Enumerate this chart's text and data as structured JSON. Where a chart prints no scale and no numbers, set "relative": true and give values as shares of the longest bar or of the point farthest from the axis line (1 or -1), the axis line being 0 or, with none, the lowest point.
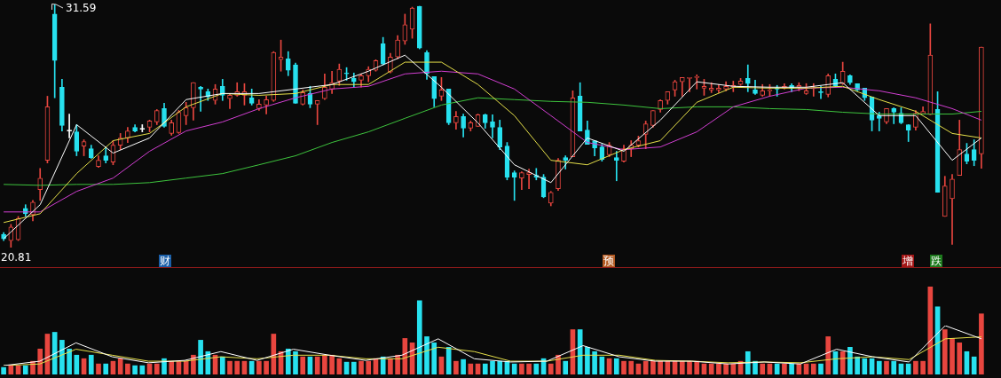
{
  "chart_data": [
    {
      "type": "candlestick",
      "categories": [
        null,
        null,
        null,
        null,
        null,
        null,
        null,
        null,
        null,
        null,
        null,
        null,
        null,
        null,
        null,
        null,
        null,
        null,
        null,
        null,
        null,
        null,
        null,
        null,
        null,
        null,
        null,
        null,
        null,
        null,
        null,
        null,
        null,
        null,
        null,
        null,
        null,
        null,
        null,
        null,
        null,
        null,
        null,
        null,
        null,
        null,
        null,
        null,
        null,
        null,
        null,
        null,
        null,
        null,
        null,
        null,
        null,
        null,
        null,
        null,
        null,
        null,
        null,
        null,
        null,
        null,
        null,
        null,
        null,
        null,
        null,
        null,
        null,
        null,
        null,
        null,
        null,
        null,
        null,
        null,
        null,
        null,
        null,
        null,
        null,
        null,
        null,
        null,
        null,
        null,
        null,
        null,
        null,
        null,
        null,
        null,
        null,
        null,
        null,
        null,
        null,
        null,
        null,
        null,
        null,
        null,
        null,
        null,
        null,
        null,
        null,
        null,
        null,
        null,
        null,
        null,
        null,
        null,
        null,
        null,
        null,
        null,
        null,
        null,
        null,
        null,
        null,
        null,
        null,
        null,
        null,
        null,
        null,
        null,
        null
      ],
      "ohlc": [
        [
          21.4,
          21.48,
          21.12,
          21.2
        ],
        [
          21.12,
          21.84,
          20.81,
          21.72
        ],
        [
          21.16,
          22.19,
          21.12,
          22.11
        ],
        [
          22.55,
          22.71,
          22.19,
          22.31
        ],
        [
          22.27,
          22.9,
          21.99,
          22.82
        ],
        [
          23.38,
          24.32,
          22.9,
          23.89
        ],
        [
          24.68,
          27.52,
          24.56,
          27.05
        ],
        [
          31.16,
          31.59,
          27.45,
          29.1
        ],
        [
          27.92,
          28.27,
          25.98,
          26.22
        ],
        [
          25.98,
          26.73,
          25.67,
          25.98
        ],
        [
          25.94,
          26.26,
          24.88,
          25.08
        ],
        [
          25.31,
          25.59,
          24.88,
          25.51
        ],
        [
          25.19,
          25.35,
          24.76,
          24.8
        ],
        [
          24.4,
          24.88,
          24.36,
          24.68
        ],
        [
          24.88,
          25.27,
          24.56,
          24.68
        ],
        [
          24.6,
          25.55,
          24.48,
          25.35
        ],
        [
          25.35,
          25.87,
          25.15,
          25.67
        ],
        [
          25.67,
          26.14,
          25.47,
          25.98
        ],
        [
          26.14,
          26.26,
          25.94,
          25.98
        ],
        [
          26.06,
          26.26,
          25.94,
          26.06
        ],
        [
          26.14,
          26.46,
          25.94,
          26.42
        ],
        [
          26.38,
          26.93,
          26.26,
          26.89
        ],
        [
          26.97,
          27.21,
          26.14,
          26.18
        ],
        [
          25.87,
          26.46,
          25.79,
          26.34
        ],
        [
          25.91,
          26.89,
          25.87,
          26.81
        ],
        [
          26.66,
          27.25,
          26.26,
          27.01
        ],
        [
          27.01,
          28.12,
          26.46,
          28.12
        ],
        [
          27.92,
          27.96,
          26.85,
          27.84
        ],
        [
          27.72,
          27.84,
          27.33,
          27.49
        ],
        [
          27.33,
          28.04,
          27.17,
          27.84
        ],
        [
          27.96,
          28.27,
          27.33,
          27.56
        ],
        [
          27.41,
          27.64,
          26.97,
          27.56
        ],
        [
          27.56,
          28.12,
          27.52,
          27.72
        ],
        [
          27.56,
          28.08,
          27.13,
          27.72
        ],
        [
          27.45,
          27.84,
          27.13,
          27.21
        ],
        [
          26.97,
          27.37,
          26.89,
          27.17
        ],
        [
          27.13,
          27.52,
          26.73,
          27.37
        ],
        [
          27.33,
          29.5,
          27.29,
          29.46
        ],
        [
          29.14,
          30.01,
          28.63,
          29.26
        ],
        [
          29.18,
          29.5,
          28.43,
          28.67
        ],
        [
          28.91,
          28.99,
          27.21,
          27.21
        ],
        [
          27.17,
          27.8,
          27.13,
          27.68
        ],
        [
          27.64,
          27.96,
          27.01,
          27.17
        ],
        [
          27.17,
          27.33,
          26.26,
          27.33
        ],
        [
          27.41,
          28.51,
          27.37,
          27.92
        ],
        [
          27.84,
          28.63,
          27.64,
          28.12
        ],
        [
          28.19,
          28.95,
          28.0,
          28.71
        ],
        [
          28.55,
          28.79,
          28.23,
          28.51
        ],
        [
          28.31,
          28.55,
          27.92,
          28.16
        ],
        [
          28.23,
          28.51,
          27.92,
          28.43
        ],
        [
          28.43,
          28.83,
          28.16,
          28.71
        ],
        [
          28.67,
          29.14,
          28.63,
          29.1
        ],
        [
          29.85,
          30.13,
          28.91,
          28.95
        ],
        [
          28.59,
          29.42,
          28.55,
          29.26
        ],
        [
          29.26,
          30.21,
          29.18,
          30.01
        ],
        [
          29.97,
          31.16,
          29.82,
          30.69
        ],
        [
          30.49,
          31.47,
          30.09,
          31.43
        ],
        [
          31.51,
          31.51,
          29.62,
          29.66
        ],
        [
          29.46,
          29.54,
          28.27,
          28.51
        ],
        [
          28.39,
          28.39,
          27.05,
          27.41
        ],
        [
          27.52,
          28.35,
          27.33,
          27.8
        ],
        [
          27.84,
          27.84,
          26.26,
          26.34
        ],
        [
          26.34,
          26.85,
          26.06,
          26.62
        ],
        [
          26.62,
          26.73,
          25.71,
          26.1
        ],
        [
          26.1,
          26.42,
          25.98,
          26.34
        ],
        [
          26.18,
          26.73,
          26.18,
          26.7
        ],
        [
          26.7,
          26.73,
          26.1,
          26.34
        ],
        [
          26.38,
          26.7,
          25.67,
          26.14
        ],
        [
          26.14,
          26.46,
          25.15,
          25.27
        ],
        [
          25.31,
          25.47,
          23.81,
          23.93
        ],
        [
          24.13,
          24.21,
          22.9,
          23.93
        ],
        [
          23.89,
          24.17,
          23.38,
          24.13
        ],
        [
          24.05,
          24.29,
          23.42,
          24.13
        ],
        [
          24.01,
          24.32,
          23.81,
          23.93
        ],
        [
          23.93,
          24.05,
          23.02,
          23.06
        ],
        [
          22.78,
          23.3,
          22.66,
          23.26
        ],
        [
          23.42,
          24.76,
          23.34,
          24.68
        ],
        [
          24.8,
          24.88,
          24.29,
          24.68
        ],
        [
          24.84,
          27.76,
          24.84,
          27.45
        ],
        [
          27.52,
          28.12,
          25.98,
          25.98
        ],
        [
          26.02,
          26.42,
          25.39,
          25.39
        ],
        [
          25.55,
          25.55,
          24.88,
          25.23
        ],
        [
          25.27,
          25.39,
          24.64,
          24.72
        ],
        [
          24.92,
          25.47,
          24.84,
          25.35
        ],
        [
          24.8,
          25.08,
          23.77,
          24.68
        ],
        [
          24.64,
          25.35,
          24.6,
          25.19
        ],
        [
          25.19,
          25.55,
          24.84,
          25.35
        ],
        [
          25.35,
          25.75,
          25.27,
          25.55
        ],
        [
          25.83,
          26.42,
          25.19,
          26.3
        ],
        [
          26.22,
          26.89,
          26.14,
          26.89
        ],
        [
          26.93,
          27.37,
          26.81,
          27.33
        ],
        [
          27.33,
          27.72,
          27.17,
          27.72
        ],
        [
          27.8,
          28.23,
          27.52,
          28.16
        ],
        [
          28.16,
          28.35,
          27.52,
          28.35
        ],
        [
          28.31,
          28.35,
          27.72,
          28.35
        ],
        [
          28.35,
          28.47,
          27.84,
          28.37
        ],
        [
          27.88,
          28.27,
          27.56,
          27.96
        ],
        [
          27.8,
          28.12,
          27.68,
          27.88
        ],
        [
          27.8,
          28.04,
          27.68,
          27.88
        ],
        [
          27.84,
          28.16,
          27.76,
          27.96
        ],
        [
          27.92,
          28.19,
          27.72,
          28.0
        ],
        [
          28.04,
          28.31,
          28.0,
          28.19
        ],
        [
          28.31,
          28.91,
          27.72,
          28.08
        ],
        [
          27.8,
          28.23,
          27.6,
          27.64
        ],
        [
          27.56,
          28.04,
          27.52,
          27.76
        ],
        [
          27.76,
          28.04,
          27.52,
          27.8
        ],
        [
          27.84,
          28.0,
          27.52,
          27.84
        ],
        [
          27.88,
          28.08,
          27.84,
          27.96
        ],
        [
          28.0,
          28.08,
          27.72,
          27.88
        ],
        [
          27.92,
          28.12,
          27.76,
          28.0
        ],
        [
          27.64,
          28.08,
          27.6,
          27.76
        ],
        [
          27.86,
          28.08,
          27.52,
          27.88
        ],
        [
          27.7,
          27.96,
          27.41,
          27.68
        ],
        [
          27.6,
          28.51,
          27.49,
          28.43
        ],
        [
          28.27,
          28.51,
          27.92,
          27.96
        ],
        [
          28.08,
          29.03,
          28.04,
          28.63
        ],
        [
          28.43,
          28.47,
          28.04,
          28.12
        ],
        [
          28.08,
          28.08,
          27.76,
          27.8
        ],
        [
          27.88,
          27.88,
          27.33,
          27.45
        ],
        [
          27.49,
          27.49,
          25.98,
          26.46
        ],
        [
          26.66,
          26.81,
          25.98,
          26.54
        ],
        [
          26.38,
          26.97,
          26.3,
          26.97
        ],
        [
          26.97,
          27.01,
          26.3,
          26.81
        ],
        [
          26.77,
          27.01,
          26.3,
          26.34
        ],
        [
          26.26,
          26.26,
          25.51,
          26.02
        ],
        [
          26.14,
          26.89,
          26.02,
          26.77
        ],
        [
          26.73,
          27.05,
          26.73,
          26.85
        ],
        [
          26.7,
          30.73,
          26.7,
          29.34
        ],
        [
          26.93,
          27.72,
          23.26,
          23.26
        ],
        [
          22.19,
          23.97,
          22.19,
          23.54
        ],
        [
          22.98,
          24.05,
          20.95,
          23.85
        ],
        [
          24.01,
          26.46,
          24.01,
          25.15
        ],
        [
          24.96,
          25.43,
          24.52,
          24.64
        ],
        [
          25.15,
          25.59,
          24.44,
          24.68
        ],
        [
          24.96,
          29.7,
          24.32,
          29.7
        ]
      ],
      "colors": [
        "#27e1ef",
        "#e8463f",
        "#e8463f",
        "#27e1ef",
        "#e8463f",
        "#e8463f",
        "#e8463f",
        "#27e1ef",
        "#27e1ef",
        "#ffffff",
        "#27e1ef",
        "#e8463f",
        "#27e1ef",
        "#e8463f",
        "#27e1ef",
        "#e8463f",
        "#e8463f",
        "#e8463f",
        "#27e1ef",
        "#ffffff",
        "#e8463f",
        "#e8463f",
        "#27e1ef",
        "#e8463f",
        "#e8463f",
        "#e8463f",
        "#e8463f",
        "#27e1ef",
        "#27e1ef",
        "#e8463f",
        "#27e1ef",
        "#e8463f",
        "#e8463f",
        "#e8463f",
        "#27e1ef",
        "#e8463f",
        "#e8463f",
        "#e8463f",
        "#e8463f",
        "#27e1ef",
        "#27e1ef",
        "#e8463f",
        "#27e1ef",
        "#e8463f",
        "#e8463f",
        "#e8463f",
        "#e8463f",
        "#27e1ef",
        "#27e1ef",
        "#e8463f",
        "#e8463f",
        "#e8463f",
        "#27e1ef",
        "#e8463f",
        "#e8463f",
        "#e8463f",
        "#e8463f",
        "#27e1ef",
        "#27e1ef",
        "#27e1ef",
        "#e8463f",
        "#27e1ef",
        "#e8463f",
        "#27e1ef",
        "#e8463f",
        "#e8463f",
        "#27e1ef",
        "#27e1ef",
        "#27e1ef",
        "#27e1ef",
        "#27e1ef",
        "#e8463f",
        "#e8463f",
        "#27e1ef",
        "#27e1ef",
        "#e8463f",
        "#e8463f",
        "#27e1ef",
        "#e8463f",
        "#27e1ef",
        "#27e1ef",
        "#27e1ef",
        "#27e1ef",
        "#e8463f",
        "#27e1ef",
        "#e8463f",
        "#e8463f",
        "#e8463f",
        "#e8463f",
        "#e8463f",
        "#e8463f",
        "#e8463f",
        "#e8463f",
        "#e8463f",
        "#e8463f",
        "#e8463f",
        "#e8463f",
        "#e8463f",
        "#e8463f",
        "#e8463f",
        "#e8463f",
        "#e8463f",
        "#27e1ef",
        "#27e1ef",
        "#e8463f",
        "#e8463f",
        "#27e1ef",
        "#e8463f",
        "#27e1ef",
        "#e8463f",
        "#e8463f",
        "#e8463f",
        "#27e1ef",
        "#e8463f",
        "#27e1ef",
        "#e8463f",
        "#27e1ef",
        "#27e1ef",
        "#27e1ef",
        "#27e1ef",
        "#27e1ef",
        "#e8463f",
        "#27e1ef",
        "#27e1ef",
        "#27e1ef",
        "#e8463f",
        "#e8463f",
        "#e8463f",
        "#27e1ef",
        "#e8463f",
        "#e8463f",
        "#e8463f",
        "#27e1ef",
        "#27e1ef",
        "#e8463f"
      ],
      "series": [
        {
          "type": "line",
          "color": "#ffffff",
          "values": [
            21.2,
            null,
            null,
            null,
            null,
            22.71,
            null,
            null,
            null,
            null,
            26.26,
            null,
            null,
            null,
            null,
            25.0,
            null,
            null,
            null,
            null,
            25.67,
            null,
            null,
            null,
            null,
            27.37,
            null,
            null,
            null,
            null,
            27.64,
            null,
            null,
            null,
            null,
            27.64,
            null,
            null,
            null,
            null,
            27.84,
            null,
            null,
            null,
            null,
            28.04,
            null,
            null,
            null,
            null,
            28.63,
            null,
            null,
            null,
            null,
            29.34,
            null,
            null,
            null,
            null,
            27.92,
            null,
            null,
            null,
            null,
            26.34,
            null,
            null,
            null,
            null,
            24.48,
            null,
            null,
            null,
            null,
            23.69,
            null,
            null,
            null,
            null,
            25.67,
            null,
            null,
            null,
            null,
            25.08,
            null,
            null,
            null,
            null,
            26.46,
            null,
            null,
            null,
            null,
            28.16,
            null,
            null,
            null,
            null,
            27.96,
            null,
            null,
            null,
            null,
            27.92,
            null,
            null,
            null,
            null,
            27.92,
            null,
            null,
            null,
            null,
            28.12,
            null,
            null,
            null,
            null,
            26.66,
            null,
            null,
            null,
            null,
            26.66,
            null,
            null,
            null,
            null,
            24.68,
            null,
            null,
            null,
            25.67
          ]
        },
        {
          "type": "line",
          "color": "#e6e04a",
          "values": [
            21.92,
            null,
            null,
            null,
            null,
            22.31,
            null,
            null,
            null,
            null,
            24.09,
            null,
            null,
            null,
            null,
            25.55,
            null,
            null,
            null,
            null,
            25.87,
            null,
            null,
            null,
            null,
            27.05,
            null,
            null,
            null,
            null,
            27.64,
            null,
            null,
            null,
            null,
            27.56,
            null,
            null,
            null,
            null,
            27.64,
            null,
            null,
            null,
            null,
            28.04,
            null,
            null,
            null,
            null,
            28.04,
            null,
            null,
            null,
            null,
            29.03,
            null,
            null,
            null,
            null,
            29.03,
            null,
            null,
            null,
            null,
            28.04,
            null,
            null,
            null,
            null,
            26.66,
            null,
            null,
            null,
            null,
            24.68,
            null,
            null,
            null,
            null,
            24.48,
            null,
            null,
            null,
            null,
            25.15,
            null,
            null,
            null,
            null,
            25.55,
            null,
            null,
            null,
            null,
            27.25,
            null,
            null,
            null,
            null,
            27.92,
            null,
            null,
            null,
            null,
            27.88,
            null,
            null,
            null,
            null,
            27.88,
            null,
            null,
            null,
            null,
            27.96,
            null,
            null,
            null,
            null,
            27.37,
            null,
            null,
            null,
            null,
            26.85,
            null,
            null,
            null,
            null,
            25.87,
            null,
            null,
            null,
            25.67
          ]
        },
        {
          "type": "line",
          "color": "#d23fd2",
          "values": [
            22.39,
            null,
            null,
            null,
            null,
            22.39,
            null,
            null,
            null,
            null,
            23.3,
            null,
            null,
            null,
            null,
            23.89,
            null,
            null,
            null,
            null,
            25.08,
            null,
            null,
            null,
            null,
            25.98,
            null,
            null,
            null,
            null,
            26.38,
            null,
            null,
            null,
            null,
            26.97,
            null,
            null,
            null,
            null,
            27.45,
            null,
            null,
            null,
            null,
            27.84,
            null,
            null,
            null,
            null,
            27.96,
            null,
            null,
            null,
            null,
            28.51,
            null,
            null,
            null,
            null,
            28.63,
            null,
            null,
            null,
            null,
            28.51,
            null,
            null,
            null,
            null,
            27.84,
            null,
            null,
            null,
            null,
            26.66,
            null,
            null,
            null,
            null,
            25.47,
            null,
            null,
            null,
            null,
            25.15,
            null,
            null,
            null,
            null,
            25.27,
            null,
            null,
            null,
            null,
            25.94,
            null,
            null,
            null,
            null,
            27.05,
            null,
            null,
            null,
            null,
            27.52,
            null,
            null,
            null,
            null,
            27.88,
            null,
            null,
            null,
            null,
            27.92,
            null,
            null,
            null,
            null,
            27.76,
            null,
            null,
            null,
            null,
            27.45,
            null,
            null,
            null,
            null,
            26.97,
            null,
            null,
            null,
            26.46
          ]
        },
        {
          "type": "line",
          "color": "#3ec43e",
          "values": [
            23.61,
            null,
            null,
            null,
            null,
            23.57,
            null,
            null,
            null,
            null,
            23.61,
            null,
            null,
            null,
            null,
            23.61,
            null,
            null,
            null,
            null,
            23.69,
            null,
            null,
            null,
            null,
            23.89,
            null,
            null,
            null,
            null,
            24.09,
            null,
            null,
            null,
            null,
            24.48,
            null,
            null,
            null,
            null,
            24.88,
            null,
            null,
            null,
            null,
            25.47,
            null,
            null,
            null,
            null,
            25.94,
            null,
            null,
            null,
            null,
            26.54,
            null,
            null,
            null,
            null,
            27.13,
            null,
            null,
            null,
            null,
            27.45,
            null,
            null,
            null,
            null,
            27.37,
            null,
            null,
            null,
            null,
            27.29,
            null,
            null,
            null,
            null,
            27.25,
            null,
            null,
            null,
            null,
            27.13,
            null,
            null,
            null,
            null,
            26.97,
            null,
            null,
            null,
            null,
            27.05,
            null,
            null,
            null,
            null,
            27.05,
            null,
            null,
            null,
            null,
            26.97,
            null,
            null,
            null,
            null,
            26.93,
            null,
            null,
            null,
            null,
            26.81,
            null,
            null,
            null,
            null,
            26.73,
            null,
            null,
            null,
            null,
            26.73,
            null,
            null,
            null,
            null,
            26.73,
            null,
            null,
            null,
            26.85
          ]
        }
      ],
      "annotations": [
        "31.59",
        "20.81",
        "财",
        "预",
        "增",
        "跌"
      ]
    },
    {
      "type": "bar",
      "relative": true,
      "categories": [
        null,
        null,
        null,
        null,
        null,
        null,
        null,
        null,
        null,
        null,
        null,
        null,
        null,
        null,
        null,
        null,
        null,
        null,
        null,
        null,
        null,
        null,
        null,
        null,
        null,
        null,
        null,
        null,
        null,
        null,
        null,
        null,
        null,
        null,
        null,
        null,
        null,
        null,
        null,
        null,
        null,
        null,
        null,
        null,
        null,
        null,
        null,
        null,
        null,
        null,
        null,
        null,
        null,
        null,
        null,
        null,
        null,
        null,
        null,
        null,
        null,
        null,
        null,
        null,
        null,
        null,
        null,
        null,
        null,
        null,
        null,
        null,
        null,
        null,
        null,
        null,
        null,
        null,
        null,
        null,
        null,
        null,
        null,
        null,
        null,
        null,
        null,
        null,
        null,
        null,
        null,
        null,
        null,
        null,
        null,
        null,
        null,
        null,
        null,
        null,
        null,
        null,
        null,
        null,
        null,
        null,
        null,
        null,
        null,
        null,
        null,
        null,
        null,
        null,
        null,
        null,
        null,
        null,
        null,
        null,
        null,
        null,
        null,
        null,
        null,
        null,
        null,
        null,
        null,
        null,
        null,
        null,
        null,
        null,
        null
      ],
      "values": [
        0.08,
        0.1,
        0.1,
        0.1,
        0.15,
        0.29,
        0.46,
        0.48,
        0.39,
        0.29,
        0.22,
        0.18,
        0.22,
        0.12,
        0.12,
        0.15,
        0.18,
        0.12,
        0.1,
        0.1,
        0.12,
        0.12,
        0.18,
        0.15,
        0.15,
        0.15,
        0.22,
        0.39,
        0.26,
        0.22,
        0.2,
        0.15,
        0.15,
        0.15,
        0.15,
        0.15,
        0.15,
        0.46,
        0.26,
        0.29,
        0.26,
        0.2,
        0.2,
        0.2,
        0.22,
        0.22,
        0.18,
        0.14,
        0.14,
        0.15,
        0.15,
        0.18,
        0.2,
        0.18,
        0.22,
        0.41,
        0.36,
        0.84,
        0.43,
        0.36,
        0.2,
        0.31,
        0.15,
        0.17,
        0.12,
        0.12,
        0.12,
        0.15,
        0.15,
        0.15,
        0.12,
        0.12,
        0.12,
        0.12,
        0.18,
        0.12,
        0.22,
        0.15,
        0.51,
        0.51,
        0.31,
        0.26,
        0.2,
        0.18,
        0.18,
        0.15,
        0.15,
        0.12,
        0.15,
        0.15,
        0.15,
        0.15,
        0.15,
        0.15,
        0.15,
        0.15,
        0.12,
        0.12,
        0.12,
        0.12,
        0.12,
        0.15,
        0.26,
        0.15,
        0.12,
        0.12,
        0.12,
        0.12,
        0.12,
        0.12,
        0.12,
        0.12,
        0.12,
        0.43,
        0.26,
        0.26,
        0.31,
        0.2,
        0.18,
        0.18,
        0.15,
        0.15,
        0.15,
        0.12,
        0.12,
        0.15,
        0.15,
        1,
        0.77,
        0.51,
        0.41,
        0.36,
        0.26,
        0.2,
        0.69
      ],
      "colors": [
        "#27e1ef",
        "#e8463f",
        "#e8463f",
        "#27e1ef",
        "#e8463f",
        "#e8463f",
        "#e8463f",
        "#27e1ef",
        "#27e1ef",
        "#27e1ef",
        "#27e1ef",
        "#e8463f",
        "#27e1ef",
        "#e8463f",
        "#27e1ef",
        "#e8463f",
        "#e8463f",
        "#e8463f",
        "#27e1ef",
        "#27e1ef",
        "#e8463f",
        "#e8463f",
        "#27e1ef",
        "#e8463f",
        "#e8463f",
        "#e8463f",
        "#e8463f",
        "#27e1ef",
        "#27e1ef",
        "#e8463f",
        "#27e1ef",
        "#e8463f",
        "#e8463f",
        "#e8463f",
        "#27e1ef",
        "#e8463f",
        "#e8463f",
        "#e8463f",
        "#e8463f",
        "#27e1ef",
        "#27e1ef",
        "#e8463f",
        "#27e1ef",
        "#e8463f",
        "#e8463f",
        "#e8463f",
        "#e8463f",
        "#27e1ef",
        "#27e1ef",
        "#e8463f",
        "#e8463f",
        "#e8463f",
        "#27e1ef",
        "#e8463f",
        "#e8463f",
        "#e8463f",
        "#e8463f",
        "#27e1ef",
        "#27e1ef",
        "#27e1ef",
        "#e8463f",
        "#27e1ef",
        "#e8463f",
        "#27e1ef",
        "#e8463f",
        "#e8463f",
        "#27e1ef",
        "#27e1ef",
        "#27e1ef",
        "#27e1ef",
        "#27e1ef",
        "#e8463f",
        "#e8463f",
        "#27e1ef",
        "#27e1ef",
        "#e8463f",
        "#e8463f",
        "#27e1ef",
        "#e8463f",
        "#27e1ef",
        "#27e1ef",
        "#27e1ef",
        "#27e1ef",
        "#e8463f",
        "#27e1ef",
        "#e8463f",
        "#e8463f",
        "#e8463f",
        "#e8463f",
        "#e8463f",
        "#e8463f",
        "#e8463f",
        "#e8463f",
        "#e8463f",
        "#e8463f",
        "#e8463f",
        "#e8463f",
        "#e8463f",
        "#e8463f",
        "#e8463f",
        "#e8463f",
        "#e8463f",
        "#27e1ef",
        "#27e1ef",
        "#e8463f",
        "#e8463f",
        "#27e1ef",
        "#e8463f",
        "#27e1ef",
        "#e8463f",
        "#e8463f",
        "#e8463f",
        "#27e1ef",
        "#e8463f",
        "#27e1ef",
        "#e8463f",
        "#27e1ef",
        "#27e1ef",
        "#27e1ef",
        "#27e1ef",
        "#27e1ef",
        "#e8463f",
        "#27e1ef",
        "#27e1ef",
        "#27e1ef",
        "#e8463f",
        "#e8463f",
        "#e8463f",
        "#27e1ef",
        "#e8463f",
        "#e8463f",
        "#e8463f",
        "#27e1ef",
        "#27e1ef",
        "#e8463f"
      ]
    },
    {
      "type": "line",
      "relative": true,
      "categories": [
        null,
        null,
        null,
        null,
        null,
        null,
        null,
        null,
        null,
        null,
        null,
        null,
        null,
        null,
        null,
        null,
        null,
        null,
        null,
        null,
        null,
        null,
        null,
        null,
        null,
        null,
        null,
        null
      ],
      "series": [
        {
          "type": "line",
          "color": "#ffffff",
          "values": [
            0,
            0.11,
            0.57,
            0.22,
            0.07,
            0.13,
            0.35,
            0.13,
            0.41,
            0.26,
            0.13,
            0.26,
            0.67,
            0.17,
            0.09,
            0.11,
            0.5,
            0.22,
            0.11,
            0.11,
            0.04,
            0.09,
            0.04,
            0.41,
            0.22,
            0.09,
            1,
            0.67
          ]
        },
        {
          "type": "line",
          "color": "#e6e04a",
          "values": [
            0,
            0.04,
            0.41,
            0.26,
            0.11,
            0.11,
            0.22,
            0.17,
            0.26,
            0.26,
            0.17,
            0.17,
            0.46,
            0.35,
            0.11,
            0.11,
            0.26,
            0.26,
            0.13,
            0.11,
            0.07,
            0.09,
            0.07,
            0.17,
            0.22,
            0.15,
            0.67,
            0.72
          ]
        }
      ]
    }
  ]
}
